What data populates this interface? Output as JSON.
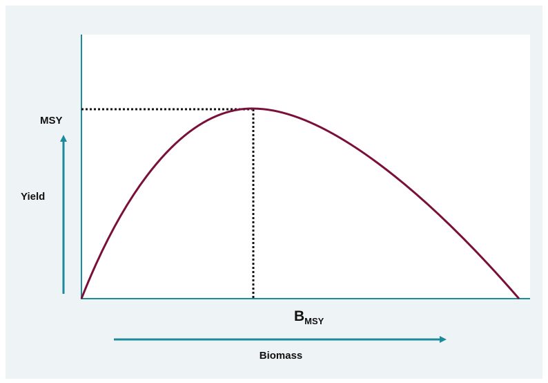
{
  "labels": {
    "y_level": "MSY",
    "y_axis": "Yield",
    "x_level": "B",
    "x_level_subscript": "MSY",
    "x_axis": "Biomass"
  }
}
